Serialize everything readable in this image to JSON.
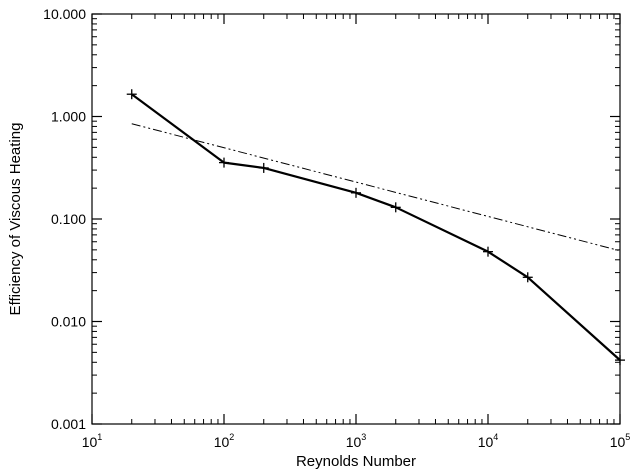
{
  "chart_data": {
    "type": "line",
    "title": "",
    "xlabel": "Reynolds Number",
    "ylabel": "Efficiency of Viscous Heating",
    "x_scale": "log",
    "y_scale": "log",
    "xlim": [
      10,
      100000
    ],
    "ylim": [
      0.001,
      10
    ],
    "grid": false,
    "x_ticks": [
      {
        "value": 10,
        "base": "10",
        "exp": "1"
      },
      {
        "value": 100,
        "base": "10",
        "exp": "2"
      },
      {
        "value": 1000,
        "base": "10",
        "exp": "3"
      },
      {
        "value": 10000,
        "base": "10",
        "exp": "4"
      },
      {
        "value": 100000,
        "base": "10",
        "exp": "5"
      }
    ],
    "y_ticks": [
      {
        "value": 10,
        "label": "10.000"
      },
      {
        "value": 1,
        "label": "1.000"
      },
      {
        "value": 0.1,
        "label": "0.100"
      },
      {
        "value": 0.01,
        "label": "0.010"
      },
      {
        "value": 0.001,
        "label": "0.001"
      }
    ],
    "series": [
      {
        "style": "solid-plus-markers",
        "color": "#000000",
        "x": [
          20,
          100,
          200,
          1000,
          2000,
          10000,
          20000,
          100000
        ],
        "y": [
          1.65,
          0.355,
          0.315,
          0.18,
          0.13,
          0.048,
          0.027,
          0.0042
        ]
      },
      {
        "style": "dash-dot-dot",
        "color": "#000000",
        "x": [
          20,
          100000
        ],
        "y": [
          0.85,
          0.049
        ]
      }
    ]
  }
}
